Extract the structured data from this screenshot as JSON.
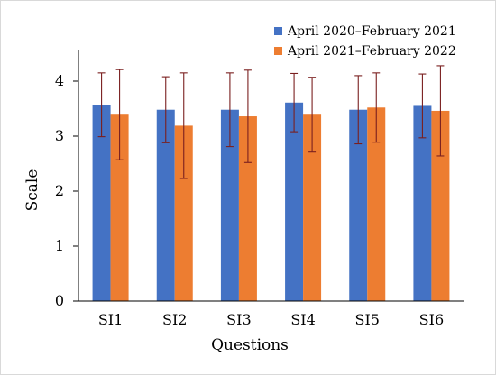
{
  "chart_data": {
    "type": "bar",
    "title": "",
    "xlabel": "Questions",
    "ylabel": "Scale",
    "ylim": [
      0,
      4.5
    ],
    "yticks": [
      0,
      1,
      2,
      3,
      4
    ],
    "grid": false,
    "legend_position": "top-right",
    "categories": [
      "SI1",
      "SI2",
      "SI3",
      "SI4",
      "SI5",
      "SI6"
    ],
    "series": [
      {
        "name": "April 2020–February 2021",
        "color": "#4472c4",
        "values": [
          3.57,
          3.48,
          3.48,
          3.61,
          3.48,
          3.55
        ],
        "error": [
          0.58,
          0.6,
          0.67,
          0.53,
          0.62,
          0.58
        ]
      },
      {
        "name": "April 2021–February 2022",
        "color": "#ed7d31",
        "values": [
          3.39,
          3.19,
          3.36,
          3.39,
          3.52,
          3.46
        ],
        "error": [
          0.82,
          0.96,
          0.84,
          0.68,
          0.63,
          0.82
        ]
      }
    ]
  }
}
